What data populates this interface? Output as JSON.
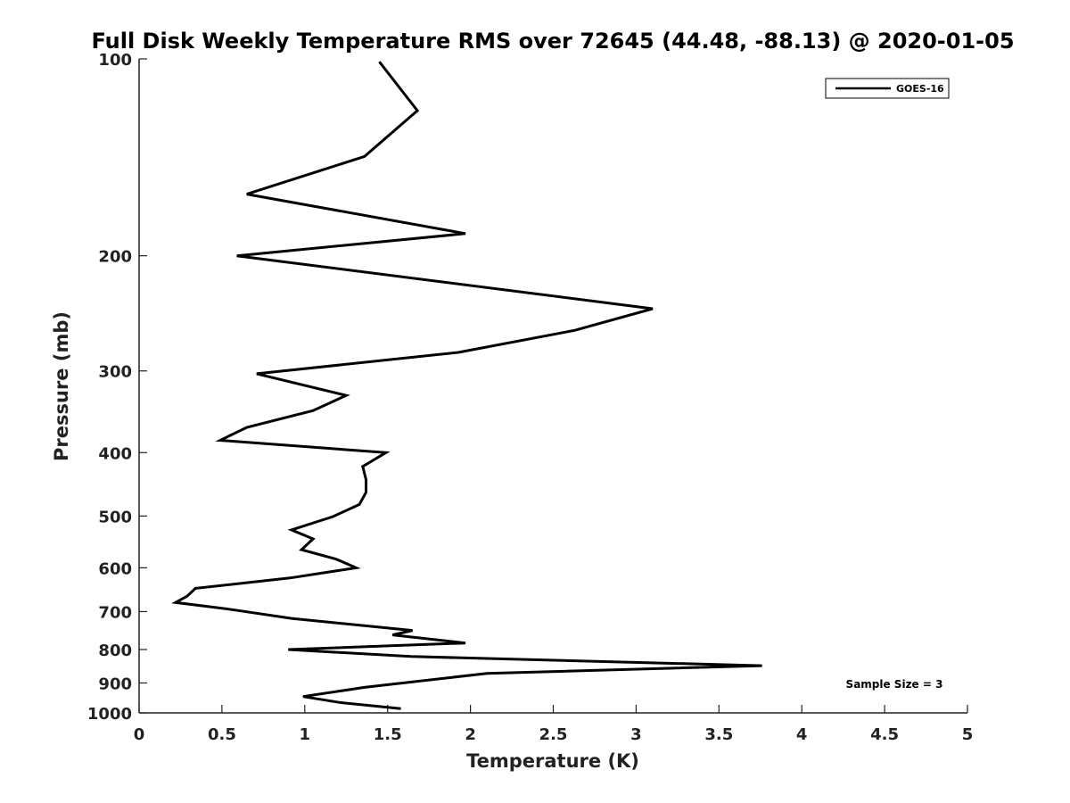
{
  "chart_data": {
    "type": "line",
    "title": "Full Disk Weekly Temperature RMS over 72645 (44.48, -88.13) @ 2020-01-05",
    "xlabel": "Temperature (K)",
    "ylabel": "Pressure (mb)",
    "xlim": [
      0,
      5
    ],
    "ylim": [
      100,
      1000
    ],
    "y_scale": "log",
    "y_reversed": true,
    "x_ticks": [
      "0",
      "0.5",
      "1",
      "1.5",
      "2",
      "2.5",
      "3",
      "3.5",
      "4",
      "4.5",
      "5"
    ],
    "y_ticks": [
      "100",
      "200",
      "300",
      "400",
      "500",
      "600",
      "700",
      "800",
      "900",
      "1000"
    ],
    "grid": false,
    "legend_position": "top-right",
    "series": [
      {
        "name": "GOES-16",
        "color": "#000000",
        "x": [
          1.45,
          1.68,
          1.36,
          0.65,
          1.97,
          0.59,
          3.1,
          2.63,
          1.93,
          0.71,
          1.25,
          1.05,
          0.65,
          0.49,
          1.49,
          1.35,
          1.37,
          1.37,
          1.33,
          1.17,
          0.92,
          1.05,
          0.98,
          1.19,
          1.31,
          0.91,
          0.34,
          0.29,
          0.22,
          0.54,
          0.92,
          1.65,
          1.53,
          1.97,
          0.9,
          1.64,
          3.76,
          2.1,
          1.36,
          0.99,
          1.21,
          1.58
        ],
        "y": [
          101,
          120,
          141,
          161,
          185,
          200,
          241,
          260,
          281,
          303,
          327,
          345,
          366,
          383,
          400,
          420,
          440,
          460,
          480,
          501,
          525,
          542,
          563,
          582,
          600,
          622,
          645,
          663,
          678,
          694,
          717,
          748,
          760,
          782,
          800,
          820,
          847,
          870,
          914,
          944,
          964,
          985
        ]
      }
    ],
    "annotations": [
      "Sample Size = 3"
    ]
  }
}
